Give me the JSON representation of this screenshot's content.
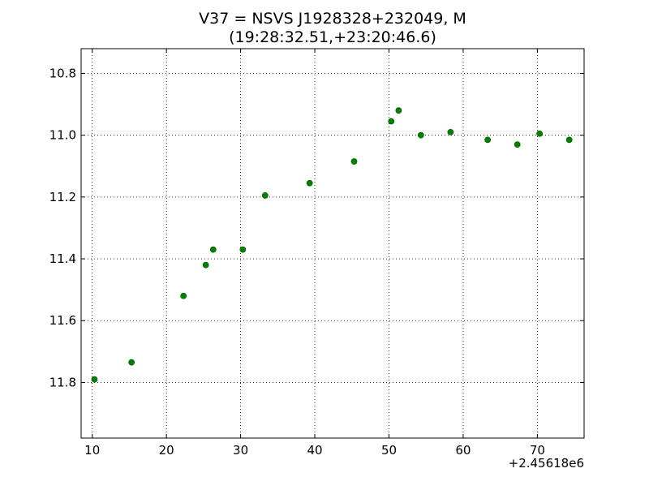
{
  "chart_data": {
    "type": "scatter",
    "title_line1": "V37 = NSVS J1928328+232049, M",
    "title_line2": "(19:28:32.51,+23:20:46.6)",
    "xlabel": "",
    "ylabel": "",
    "x_offset_label": "+2.45618e6",
    "xlim": [
      8.5,
      76.3
    ],
    "ylim": [
      11.98,
      10.72
    ],
    "y_inverted": true,
    "x_ticks": [
      10,
      20,
      30,
      40,
      50,
      60,
      70
    ],
    "y_ticks": [
      10.8,
      11.0,
      11.2,
      11.4,
      11.6,
      11.8
    ],
    "y_tick_labels": [
      "10.8",
      "11.0",
      "11.2",
      "11.4",
      "11.6",
      "11.8"
    ],
    "grid": true,
    "marker_color": "#007f00",
    "series": [
      {
        "x": [
          10.3,
          15.3,
          22.3,
          25.3,
          26.3,
          30.3,
          33.3,
          39.3,
          45.3,
          50.3,
          51.3,
          54.3,
          58.3,
          63.3,
          67.3,
          70.3,
          74.3
        ],
        "y": [
          11.79,
          11.735,
          11.52,
          11.42,
          11.37,
          11.37,
          11.195,
          11.155,
          11.085,
          10.955,
          10.92,
          11.0,
          10.99,
          11.015,
          11.03,
          10.995,
          11.015
        ]
      }
    ]
  }
}
